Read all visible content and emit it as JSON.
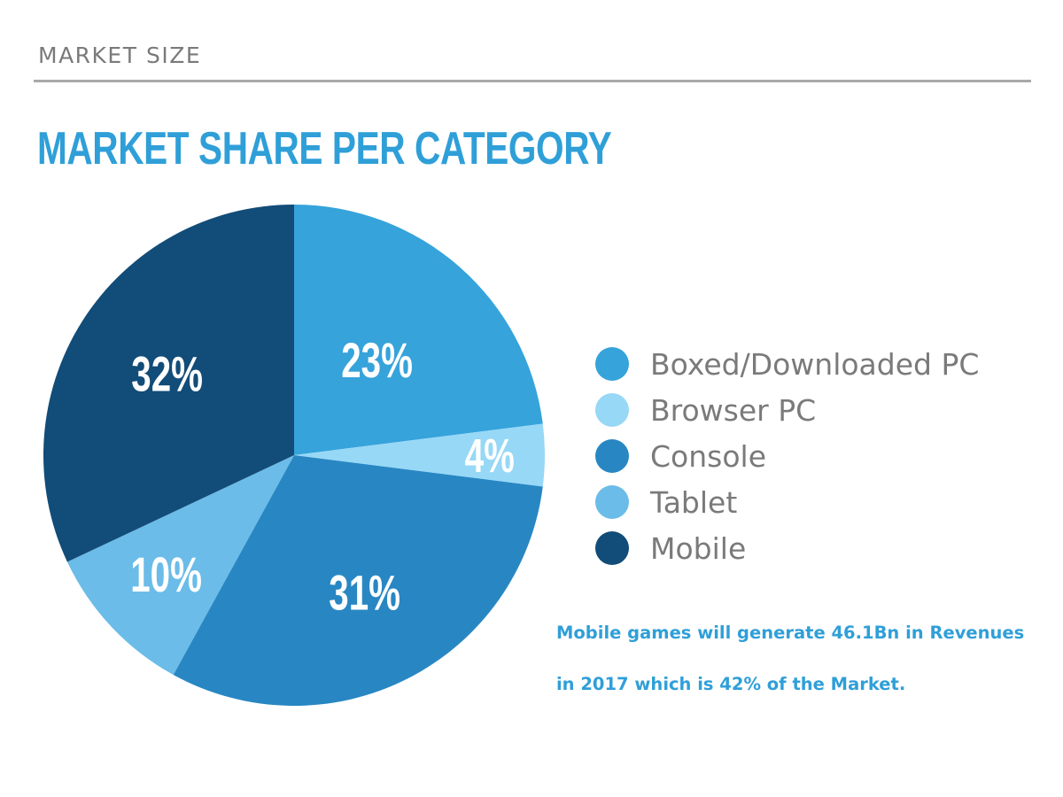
{
  "header": {
    "section_label": "MARKET SIZE",
    "title": "MARKET SHARE PER CATEGORY"
  },
  "chart_data": {
    "type": "pie",
    "slices": [
      {
        "label": "Boxed/Downloaded PC",
        "value": 23,
        "data_label": "23%",
        "color": "#36a3db"
      },
      {
        "label": "Browser PC",
        "value": 4,
        "data_label": "4%",
        "color": "#97d8f6"
      },
      {
        "label": "Console",
        "value": 31,
        "data_label": "31%",
        "color": "#2887c3"
      },
      {
        "label": "Tablet",
        "value": 10,
        "data_label": "10%",
        "color": "#6bbce8"
      },
      {
        "label": "Mobile",
        "value": 32,
        "data_label": "32%",
        "color": "#124c78"
      }
    ],
    "legend": {
      "placement": "right",
      "items": [
        "Boxed/Downloaded PC",
        "Browser PC",
        "Console",
        "Tablet",
        "Mobile"
      ]
    }
  },
  "note": {
    "line1": "Mobile games will generate 46.1Bn in Revenues",
    "line2": "in 2017 which is 42% of the Market."
  }
}
